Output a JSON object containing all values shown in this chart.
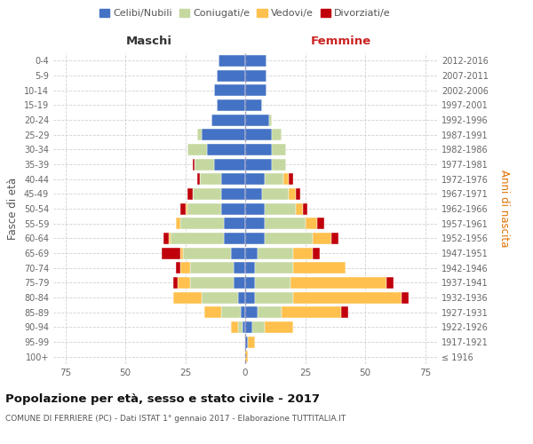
{
  "age_groups": [
    "100+",
    "95-99",
    "90-94",
    "85-89",
    "80-84",
    "75-79",
    "70-74",
    "65-69",
    "60-64",
    "55-59",
    "50-54",
    "45-49",
    "40-44",
    "35-39",
    "30-34",
    "25-29",
    "20-24",
    "15-19",
    "10-14",
    "5-9",
    "0-4"
  ],
  "birth_years": [
    "≤ 1916",
    "1917-1921",
    "1922-1926",
    "1927-1931",
    "1932-1936",
    "1937-1941",
    "1942-1946",
    "1947-1951",
    "1952-1956",
    "1957-1961",
    "1962-1966",
    "1967-1971",
    "1972-1976",
    "1977-1981",
    "1982-1986",
    "1987-1991",
    "1992-1996",
    "1997-2001",
    "2002-2006",
    "2007-2011",
    "2012-2016"
  ],
  "male_celibi": [
    0,
    0,
    1,
    2,
    3,
    5,
    5,
    6,
    9,
    9,
    10,
    10,
    10,
    13,
    16,
    18,
    14,
    12,
    13,
    12,
    11
  ],
  "male_coniugati": [
    0,
    0,
    2,
    8,
    15,
    18,
    18,
    20,
    22,
    18,
    14,
    12,
    9,
    8,
    8,
    2,
    0,
    0,
    0,
    0,
    0
  ],
  "male_vedovi": [
    0,
    0,
    3,
    7,
    12,
    5,
    4,
    1,
    1,
    2,
    1,
    0,
    0,
    0,
    0,
    0,
    0,
    0,
    0,
    0,
    0
  ],
  "male_divorziati": [
    0,
    0,
    0,
    0,
    0,
    2,
    2,
    8,
    2,
    0,
    2,
    2,
    1,
    1,
    0,
    0,
    0,
    0,
    0,
    0,
    0
  ],
  "female_celibi": [
    0,
    1,
    3,
    5,
    4,
    4,
    4,
    5,
    8,
    8,
    8,
    7,
    8,
    11,
    11,
    11,
    10,
    7,
    9,
    9,
    9
  ],
  "female_coniugati": [
    0,
    0,
    5,
    10,
    16,
    15,
    16,
    15,
    20,
    17,
    13,
    11,
    8,
    6,
    6,
    4,
    1,
    0,
    0,
    0,
    0
  ],
  "female_vedovi": [
    1,
    3,
    12,
    25,
    45,
    40,
    22,
    8,
    8,
    5,
    3,
    3,
    2,
    0,
    0,
    0,
    0,
    0,
    0,
    0,
    0
  ],
  "female_divorziati": [
    0,
    0,
    0,
    3,
    3,
    3,
    0,
    3,
    3,
    3,
    2,
    2,
    2,
    0,
    0,
    0,
    0,
    0,
    0,
    0,
    0
  ],
  "color_celibi": "#4472c4",
  "color_coniugati": "#c5d8a0",
  "color_vedovi": "#ffc04d",
  "color_divorziati": "#c0000b",
  "title": "Popolazione per età, sesso e stato civile - 2017",
  "subtitle": "COMUNE DI FERRIERE (PC) - Dati ISTAT 1° gennaio 2017 - Elaborazione TUTTITALIA.IT",
  "xlabel_left": "Maschi",
  "xlabel_right": "Femmine",
  "ylabel_left": "Fasce di età",
  "ylabel_right": "Anni di nascita",
  "xlim": 80,
  "background_color": "#ffffff",
  "grid_color": "#cccccc"
}
